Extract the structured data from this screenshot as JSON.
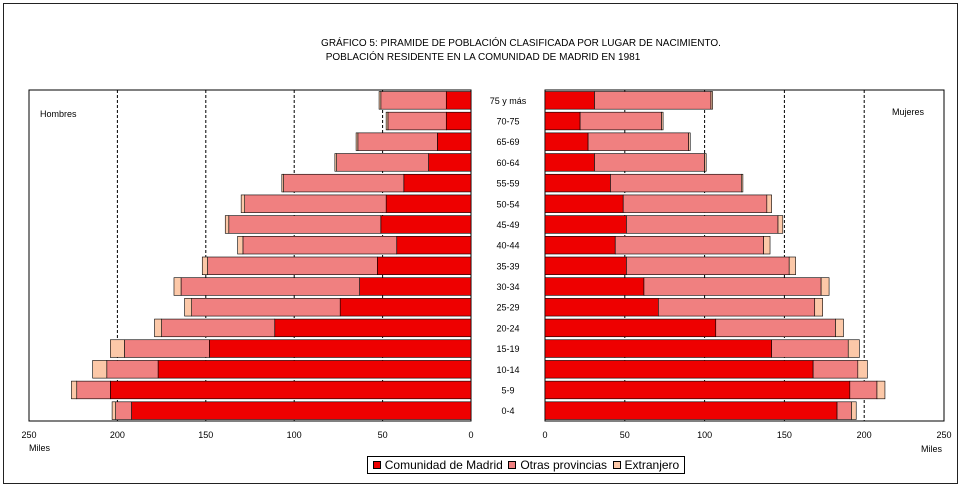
{
  "colors": {
    "madrid": "#ee0000",
    "otras": "#f08080",
    "extranjero": "#fcc8a8"
  },
  "chart_data": {
    "type": "bar",
    "orientation": "horizontal-pyramid",
    "title": "GRÁFICO 5: PIRAMIDE DE POBLACIÓN CLASIFICADA POR LUGAR DE NACIMIENTO.",
    "subtitle": "POBLACIÓN RESIDENTE EN LA COMUNIDAD DE MADRID EN 1981",
    "left_label": "Hombres",
    "right_label": "Mujeres",
    "unit_label_left": "Miles",
    "unit_label_right": "Miles",
    "xlim": [
      0,
      250
    ],
    "x_ticks": [
      0,
      50,
      100,
      150,
      200,
      250
    ],
    "grid": "dashed vertical lines at 50, 100, 150, 200",
    "stacked": true,
    "categories": [
      "0-4",
      "5-9",
      "10-14",
      "15-19",
      "20-24",
      "25-29",
      "30-34",
      "35-39",
      "40-44",
      "45-49",
      "50-54",
      "55-59",
      "60-64",
      "65-69",
      "70-75",
      "75 y más"
    ],
    "series_names": [
      "Comunidad de Madrid",
      "Otras provincias",
      "Extranjero"
    ],
    "hombres": {
      "Comunidad de Madrid": [
        192,
        204,
        177,
        148,
        111,
        74,
        63,
        53,
        42,
        51,
        48,
        38,
        24,
        19,
        14,
        14
      ],
      "Otras provincias": [
        9,
        19,
        29,
        48,
        64,
        84,
        101,
        96,
        87,
        86,
        80,
        68,
        52,
        45,
        33,
        37
      ],
      "Extranjero": [
        2,
        3,
        8,
        8,
        4,
        4,
        4,
        3,
        3,
        2,
        2,
        1,
        1,
        1,
        1,
        1
      ]
    },
    "mujeres": {
      "Comunidad de Madrid": [
        183,
        191,
        168,
        142,
        107,
        71,
        62,
        51,
        44,
        51,
        49,
        41,
        31,
        27,
        22,
        31
      ],
      "Otras provincias": [
        9,
        17,
        28,
        48,
        75,
        98,
        111,
        102,
        93,
        95,
        90,
        82,
        69,
        63,
        51,
        73
      ],
      "Extranjero": [
        3,
        5,
        6,
        7,
        5,
        5,
        5,
        4,
        4,
        3,
        3,
        1,
        1,
        1,
        1,
        1
      ]
    },
    "legend_position": "bottom"
  }
}
